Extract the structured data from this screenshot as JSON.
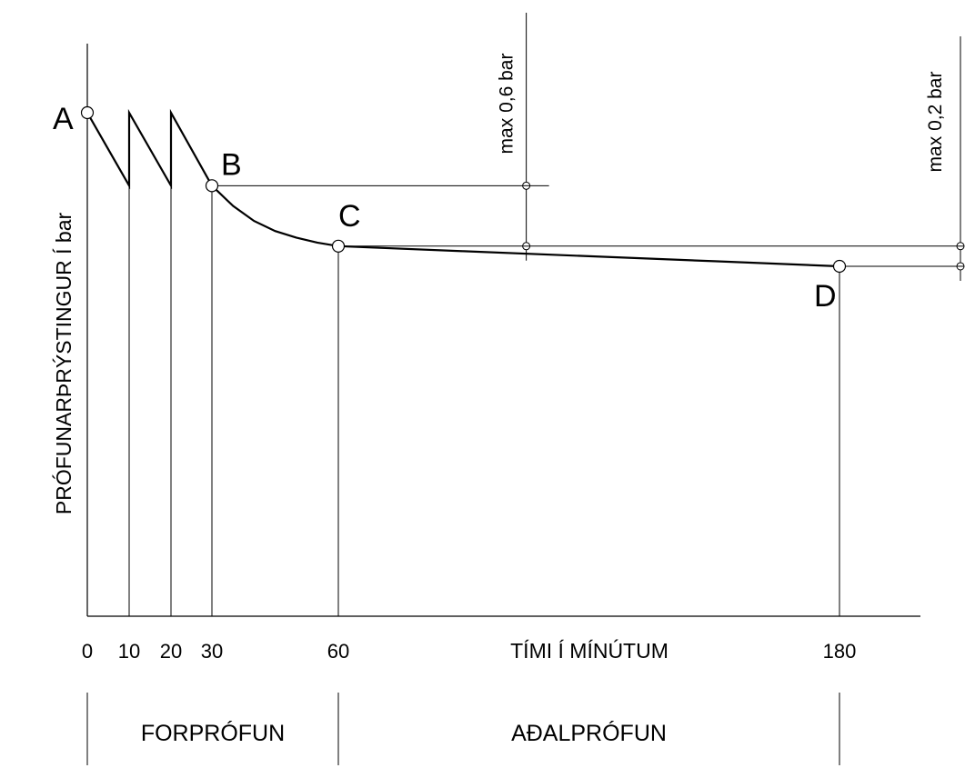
{
  "chart_data": {
    "type": "line",
    "title": "",
    "xlabel": "TÍMI Í MÍNÚTUM",
    "ylabel": "PRÓFUNARÞRÝSTINGUR Í bar",
    "x_ticks": [
      "0",
      "10",
      "20",
      "30",
      "60",
      "180"
    ],
    "phases": [
      {
        "label": "FORPRÓFUN",
        "from": 0,
        "to": 60
      },
      {
        "label": "AÐALPRÓFUN",
        "from": 60,
        "to": 180
      }
    ],
    "points": [
      {
        "label": "A",
        "x": 0,
        "y": 1.0
      },
      {
        "label": "B",
        "x": 30,
        "y": 0.855
      },
      {
        "label": "C",
        "x": 60,
        "y": 0.735
      },
      {
        "label": "D",
        "x": 180,
        "y": 0.695
      }
    ],
    "annotations": [
      {
        "text": "max 0,6 bar",
        "x": 105,
        "from_y": 0.855,
        "to_y": 0.735
      },
      {
        "text": "max 0,2 bar",
        "x": 208,
        "from_y": 0.735,
        "to_y": 0.695
      }
    ],
    "series": [
      {
        "x": [
          0,
          10,
          10,
          20,
          20,
          30,
          35,
          40,
          45,
          50,
          55,
          60,
          90,
          120,
          150,
          180
        ],
        "y": [
          1.0,
          0.855,
          1.0,
          0.855,
          1.0,
          0.855,
          0.815,
          0.785,
          0.765,
          0.752,
          0.742,
          0.735,
          0.725,
          0.715,
          0.705,
          0.695
        ]
      }
    ],
    "grid": false
  }
}
